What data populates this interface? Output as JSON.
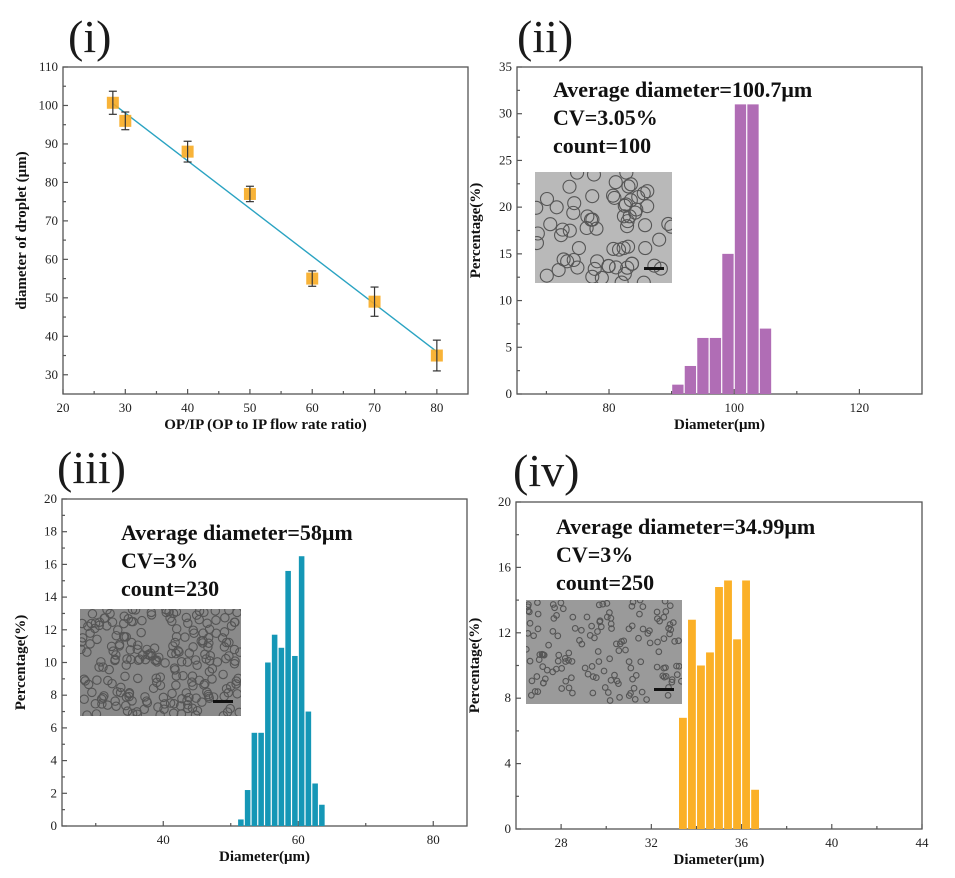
{
  "figure": {
    "colors": {
      "scatter_marker": "#f7ab22",
      "fit_line": "#2aa3c2",
      "errorbar": "#333333",
      "hist_ii": "#b06db5",
      "hist_iii": "#1597b6",
      "hist_iv": "#fbb027",
      "inset_bg_ii": "#b9b9b9",
      "inset_bg_iii": "#8a8a8a",
      "inset_bg_iv": "#9a9a9a"
    }
  },
  "chart_data": [
    {
      "id": "i",
      "panel_label": "(i)",
      "type": "scatter",
      "title": "",
      "xlabel": "OP/IP (OP to IP flow rate ratio)",
      "ylabel": "diameter of droplet (μm)",
      "xlim": [
        20,
        85
      ],
      "ylim": [
        25,
        110
      ],
      "xticks": [
        20,
        30,
        40,
        50,
        60,
        70,
        80
      ],
      "yticks": [
        30,
        40,
        50,
        60,
        70,
        80,
        90,
        100,
        110
      ],
      "grid": false,
      "series": [
        {
          "name": "droplet diameter",
          "x": [
            28,
            30,
            40,
            50,
            60,
            70,
            80
          ],
          "y": [
            100.7,
            96,
            88,
            77,
            55,
            49,
            35
          ],
          "yerr": [
            3,
            2.3,
            2.7,
            2,
            2,
            3.8,
            4
          ]
        }
      ],
      "fit_line": {
        "x": [
          28,
          80
        ],
        "y": [
          100.5,
          36
        ]
      }
    },
    {
      "id": "ii",
      "panel_label": "(ii)",
      "type": "bar",
      "xlabel": "Diameter(μm)",
      "ylabel": "Percentage(%)",
      "xlim": [
        65.3,
        130
      ],
      "ylim": [
        0,
        35
      ],
      "xticks": [
        80,
        100,
        120
      ],
      "yticks": [
        0,
        5,
        10,
        15,
        20,
        25,
        30,
        35
      ],
      "bin_width": 2,
      "bin_centers": [
        91,
        93,
        95,
        97,
        99,
        101,
        103,
        105
      ],
      "values": [
        1,
        3,
        6,
        6,
        15,
        31,
        31,
        7
      ],
      "annotations": [
        "Average diameter=100.7μm",
        "CV=3.05%",
        "count=100"
      ],
      "inset": "micrograph of monodisperse droplets with scale bar"
    },
    {
      "id": "iii",
      "panel_label": "(iii)",
      "type": "bar",
      "xlabel": "Diameter(μm)",
      "ylabel": "Percentage(%)",
      "xlim": [
        25,
        85
      ],
      "ylim": [
        0,
        20
      ],
      "xticks": [
        40,
        60,
        80
      ],
      "yticks": [
        0,
        2,
        4,
        6,
        8,
        10,
        12,
        14,
        16,
        18,
        20
      ],
      "bin_width": 1,
      "bin_centers": [
        51.5,
        52.5,
        53.5,
        54.5,
        55.5,
        56.5,
        57.5,
        58.5,
        59.5,
        60.5,
        61.5,
        62.5,
        63.5
      ],
      "values": [
        0.4,
        2.2,
        5.7,
        5.7,
        10.0,
        11.7,
        10.9,
        15.6,
        10.4,
        16.5,
        7.0,
        2.6,
        1.3
      ],
      "annotations": [
        "Average diameter=58μm",
        "CV=3%",
        "count=230"
      ],
      "inset": "micrograph of packed droplets with scale bar"
    },
    {
      "id": "iv",
      "panel_label": "(iv)",
      "type": "bar",
      "xlabel": "Diameter(μm)",
      "ylabel": "Percentage(%)",
      "xlim": [
        26,
        44
      ],
      "ylim": [
        0,
        20
      ],
      "xticks": [
        28,
        32,
        36,
        40,
        44
      ],
      "yticks": [
        0,
        4,
        8,
        12,
        16,
        20
      ],
      "bin_width": 0.4,
      "bin_centers": [
        33.4,
        33.8,
        34.2,
        34.6,
        35.0,
        35.4,
        35.8,
        36.2,
        36.6
      ],
      "values": [
        6.8,
        12.8,
        10.0,
        10.8,
        14.8,
        15.2,
        11.6,
        15.2,
        2.4
      ],
      "annotations": [
        "Average diameter=34.99μm",
        "CV=3%",
        "count=250"
      ],
      "inset": "micrograph of small droplets with scale bar"
    }
  ]
}
